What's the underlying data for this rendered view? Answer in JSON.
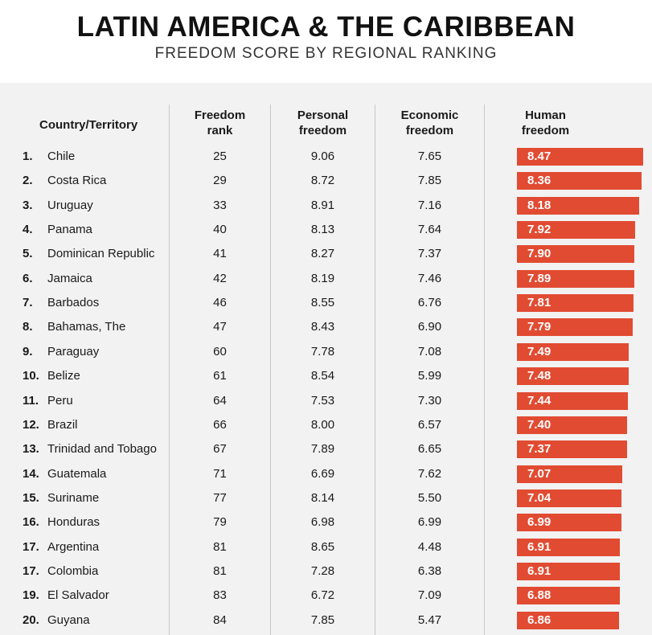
{
  "title": "LATIN AMERICA & THE CARIBBEAN",
  "subtitle": "FREEDOM SCORE BY REGIONAL RANKING",
  "headers": {
    "country": "Country/Territory",
    "freedom_rank_1": "Freedom",
    "freedom_rank_2": "rank",
    "personal_1": "Personal",
    "personal_2": "freedom",
    "economic_1": "Economic",
    "economic_2": "freedom",
    "human_1": "Human",
    "human_2": "freedom"
  },
  "colors": {
    "bar": "#e14b32",
    "panel": "#f2f2f2"
  },
  "chart_data": {
    "type": "table",
    "columns": [
      "Country/Territory",
      "Freedom rank",
      "Personal freedom",
      "Economic freedom",
      "Human freedom"
    ],
    "rows": [
      {
        "pos": "1.",
        "country": "Chile",
        "rank": "25",
        "personal": "9.06",
        "economic": "7.65",
        "human": "8.47"
      },
      {
        "pos": "2.",
        "country": "Costa Rica",
        "rank": "29",
        "personal": "8.72",
        "economic": "7.85",
        "human": "8.36"
      },
      {
        "pos": "3.",
        "country": "Uruguay",
        "rank": "33",
        "personal": "8.91",
        "economic": "7.16",
        "human": "8.18"
      },
      {
        "pos": "4.",
        "country": "Panama",
        "rank": "40",
        "personal": "8.13",
        "economic": "7.64",
        "human": "7.92"
      },
      {
        "pos": "5.",
        "country": "Dominican Republic",
        "rank": "41",
        "personal": "8.27",
        "economic": "7.37",
        "human": "7.90"
      },
      {
        "pos": "6.",
        "country": "Jamaica",
        "rank": "42",
        "personal": "8.19",
        "economic": "7.46",
        "human": "7.89"
      },
      {
        "pos": "7.",
        "country": "Barbados",
        "rank": "46",
        "personal": "8.55",
        "economic": "6.76",
        "human": "7.81"
      },
      {
        "pos": "8.",
        "country": "Bahamas, The",
        "rank": "47",
        "personal": "8.43",
        "economic": "6.90",
        "human": "7.79"
      },
      {
        "pos": "9.",
        "country": "Paraguay",
        "rank": "60",
        "personal": "7.78",
        "economic": "7.08",
        "human": "7.49"
      },
      {
        "pos": "10.",
        "country": "Belize",
        "rank": "61",
        "personal": "8.54",
        "economic": "5.99",
        "human": "7.48"
      },
      {
        "pos": "11.",
        "country": "Peru",
        "rank": "64",
        "personal": "7.53",
        "economic": "7.30",
        "human": "7.44"
      },
      {
        "pos": "12.",
        "country": "Brazil",
        "rank": "66",
        "personal": "8.00",
        "economic": "6.57",
        "human": "7.40"
      },
      {
        "pos": "13.",
        "country": "Trinidad and Tobago",
        "rank": "67",
        "personal": "7.89",
        "economic": "6.65",
        "human": "7.37"
      },
      {
        "pos": "14.",
        "country": "Guatemala",
        "rank": "71",
        "personal": "6.69",
        "economic": "7.62",
        "human": "7.07"
      },
      {
        "pos": "15.",
        "country": "Suriname",
        "rank": "77",
        "personal": "8.14",
        "economic": "5.50",
        "human": "7.04"
      },
      {
        "pos": "16.",
        "country": "Honduras",
        "rank": "79",
        "personal": "6.98",
        "economic": "6.99",
        "human": "6.99"
      },
      {
        "pos": "17.",
        "country": "Argentina",
        "rank": "81",
        "personal": "8.65",
        "economic": "4.48",
        "human": "6.91"
      },
      {
        "pos": "17.",
        "country": "Colombia",
        "rank": "81",
        "personal": "7.28",
        "economic": "6.38",
        "human": "6.91"
      },
      {
        "pos": "19.",
        "country": "El Salvador",
        "rank": "83",
        "personal": "6.72",
        "economic": "7.09",
        "human": "6.88"
      },
      {
        "pos": "20.",
        "country": "Guyana",
        "rank": "84",
        "personal": "7.85",
        "economic": "5.47",
        "human": "6.86"
      }
    ]
  }
}
